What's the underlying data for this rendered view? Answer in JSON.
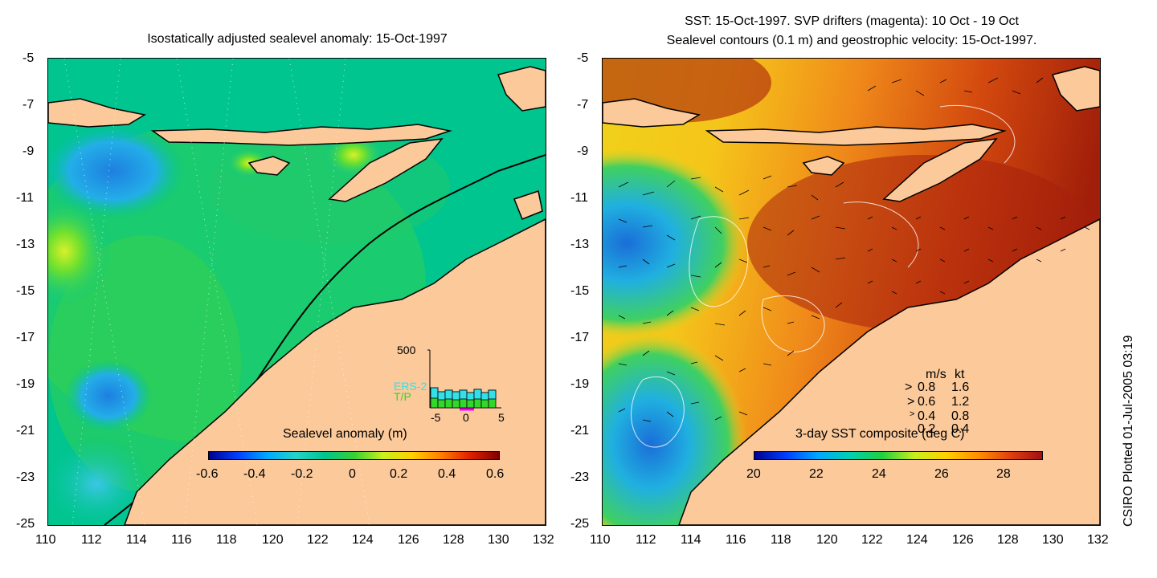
{
  "left_panel": {
    "title": "Isostatically adjusted sealevel anomaly: 15-Oct-1997",
    "colorbar_label": "Sealevel anomaly (m)",
    "colorbar_ticks": [
      "-0.6",
      "-0.4",
      "-0.2",
      "0",
      "0.2",
      "0.4",
      "0.6"
    ],
    "inset": {
      "y_max_label": "500",
      "x_ticks": [
        "-5",
        "0",
        "5"
      ],
      "legend": [
        {
          "label": "ERS-2",
          "color": "#33e0e8"
        },
        {
          "label": "T/P",
          "color": "#33d62a"
        }
      ]
    }
  },
  "right_panel": {
    "title_line1": "SST: 15-Oct-1997. SVP drifters (magenta): 10 Oct - 19 Oct",
    "title_line2": "Sealevel contours (0.1 m) and geostrophic velocity: 15-Oct-1997.",
    "colorbar_label": "3-day SST composite (deg C)",
    "colorbar_ticks": [
      "20",
      "22",
      "24",
      "26",
      "28"
    ],
    "speed_legend": {
      "header_ms": "m/s",
      "header_kt": "kt",
      "rows": [
        {
          "ms": "0.8",
          "kt": "1.6"
        },
        {
          "ms": "0.6",
          "kt": "1.2"
        },
        {
          "ms": "0.4",
          "kt": "0.8"
        },
        {
          "ms": "0.2",
          "kt": "0.4"
        }
      ]
    }
  },
  "axes": {
    "x_ticks": [
      "110",
      "112",
      "114",
      "116",
      "118",
      "120",
      "122",
      "124",
      "126",
      "128",
      "130",
      "132"
    ],
    "y_ticks": [
      "-5",
      "-7",
      "-9",
      "-11",
      "-13",
      "-15",
      "-17",
      "-19",
      "-21",
      "-23",
      "-25"
    ]
  },
  "credit": "CSIRO Plotted 01-Jul-2005 03:19",
  "colors": {
    "land": "#fbc99a",
    "ocean_base_left": "#00c58f",
    "ocean_base_right": "#e36a14"
  }
}
